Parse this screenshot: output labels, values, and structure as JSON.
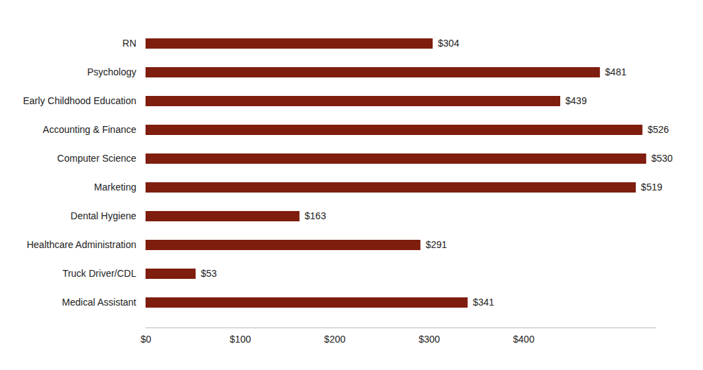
{
  "chart_data": {
    "type": "bar",
    "orientation": "horizontal",
    "categories": [
      "RN",
      "Psychology",
      "Early Childhood Education",
      "Accounting & Finance",
      "Computer Science",
      "Marketing",
      "Dental Hygiene",
      "Healthcare Administration",
      "Truck Driver/CDL",
      "Medical Assistant"
    ],
    "values": [
      304,
      481,
      439,
      526,
      530,
      519,
      163,
      291,
      53,
      341
    ],
    "value_labels": [
      "$304",
      "$481",
      "$439",
      "$526",
      "$530",
      "$519",
      "$163",
      "$291",
      "$53",
      "$341"
    ],
    "data_labels": true,
    "color": "#7f1d0e",
    "xlim": [
      0,
      540
    ],
    "xticks": [
      {
        "value": 0,
        "label": "$0"
      },
      {
        "value": 100,
        "label": "$100"
      },
      {
        "value": 200,
        "label": "$200"
      },
      {
        "value": 300,
        "label": "$300"
      },
      {
        "value": 400,
        "label": "$400"
      }
    ],
    "grid": false
  }
}
